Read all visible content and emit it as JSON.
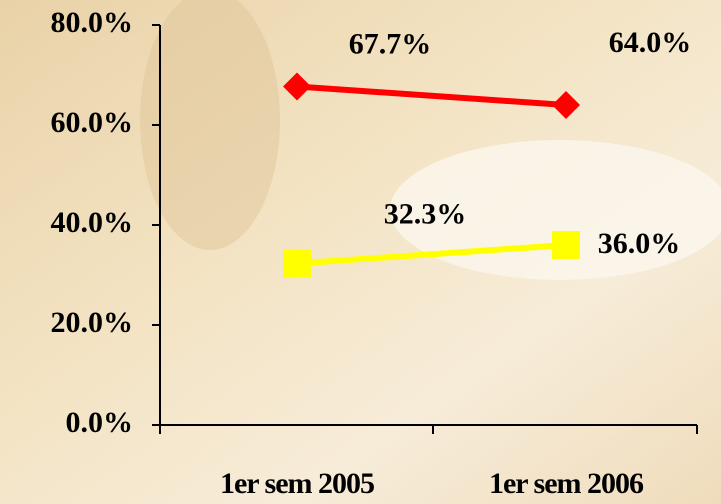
{
  "chart_data": {
    "type": "line",
    "categories": [
      "1er sem 2005",
      "1er sem 2006"
    ],
    "series": [
      {
        "color": "#ff0000",
        "marker": "diamond",
        "values": [
          67.7,
          64.0
        ],
        "value_labels": [
          "67.7%",
          "64.0%"
        ]
      },
      {
        "color": "#ffff00",
        "marker": "square",
        "values": [
          32.3,
          36.0
        ],
        "value_labels": [
          "32.3%",
          "36.0%"
        ]
      }
    ],
    "ylim": [
      0,
      80
    ],
    "yticks": [
      {
        "value": 0,
        "label": "0.0%"
      },
      {
        "value": 20,
        "label": "20.0%"
      },
      {
        "value": 40,
        "label": "40.0%"
      },
      {
        "value": 60,
        "label": "60.0%"
      },
      {
        "value": 80,
        "label": "80.0%"
      }
    ]
  }
}
